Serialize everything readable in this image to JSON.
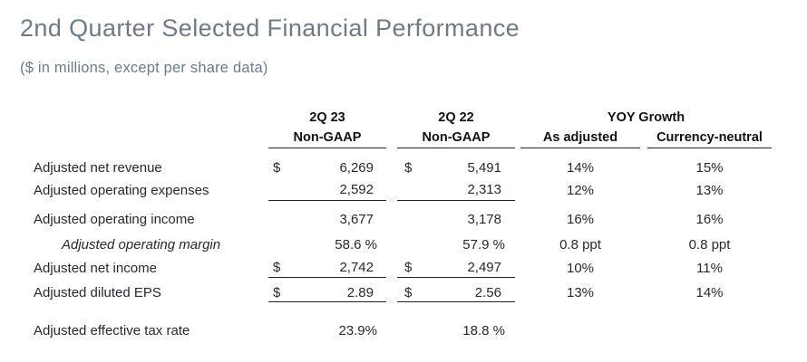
{
  "page": {
    "title": "2nd Quarter Selected Financial Performance",
    "subtitle": "($ in millions, except per share data)"
  },
  "colors": {
    "title_text": "#6d7b89",
    "table_text": "#26292e",
    "rule": "#222222",
    "background": "#ffffff"
  },
  "table": {
    "header": {
      "col1_period": "2Q 23",
      "col1_basis": "Non-GAAP",
      "col2_period": "2Q 22",
      "col2_basis": "Non-GAAP",
      "group_label": "YOY Growth",
      "col3_label": "As adjusted",
      "col4_label": "Currency-neutral"
    },
    "rows": [
      {
        "label": "Adjusted net revenue",
        "dollar1": "$",
        "value1": "6,269",
        "dollar2": "$",
        "value2": "5,491",
        "growth_adjusted": "14%",
        "growth_currency_neutral": "15%",
        "underline": false,
        "italic": false
      },
      {
        "label": "Adjusted operating expenses",
        "value1": "2,592",
        "value2": "2,313",
        "growth_adjusted": "12%",
        "growth_currency_neutral": "13%",
        "underline": true,
        "italic": false
      },
      {
        "label": "Adjusted operating income",
        "value1": "3,677",
        "value2": "3,178",
        "growth_adjusted": "16%",
        "growth_currency_neutral": "16%",
        "underline": false,
        "italic": false
      },
      {
        "label": "Adjusted operating margin",
        "value1": "58.6 %",
        "value2": "57.9 %",
        "growth_adjusted": "0.8 ppt",
        "growth_currency_neutral": "0.8 ppt",
        "underline": false,
        "italic": true
      },
      {
        "label": "Adjusted net income",
        "dollar1": "$",
        "value1": "2,742",
        "dollar2": "$",
        "value2": "2,497",
        "growth_adjusted": "10%",
        "growth_currency_neutral": "11%",
        "underline": true,
        "italic": false
      },
      {
        "label": "Adjusted diluted EPS",
        "dollar1": "$",
        "value1": "2.89",
        "dollar2": "$",
        "value2": "2.56",
        "growth_adjusted": "13%",
        "growth_currency_neutral": "14%",
        "underline": true,
        "italic": false
      },
      {
        "label": "Adjusted effective tax rate",
        "value1": "23.9%",
        "value2": "18.8 %",
        "underline": false,
        "italic": false
      }
    ]
  }
}
